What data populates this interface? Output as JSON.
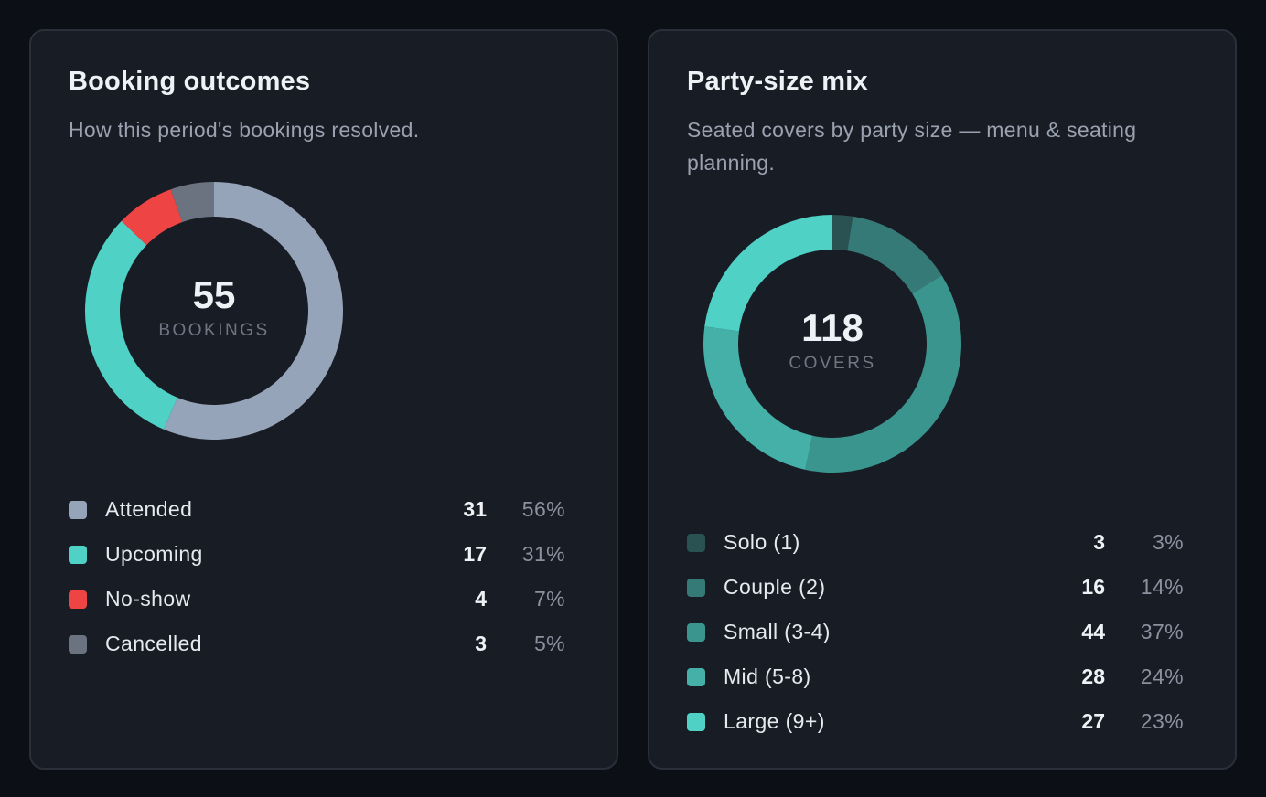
{
  "chart_data": [
    {
      "type": "pie",
      "variant": "donut",
      "title": "Booking outcomes",
      "subtitle": "How this period's bookings resolved.",
      "center_value": "55",
      "center_label": "BOOKINGS",
      "series": [
        {
          "name": "Attended",
          "value": 31,
          "percent": "56%",
          "color": "#96a4ba"
        },
        {
          "name": "Upcoming",
          "value": 17,
          "percent": "31%",
          "color": "#4fd1c5"
        },
        {
          "name": "No-show",
          "value": 4,
          "percent": "7%",
          "color": "#ef4444"
        },
        {
          "name": "Cancelled",
          "value": 3,
          "percent": "5%",
          "color": "#6b7280"
        }
      ]
    },
    {
      "type": "pie",
      "variant": "donut",
      "title": "Party-size mix",
      "subtitle": "Seated covers by party size — menu & seating planning.",
      "center_value": "118",
      "center_label": "COVERS",
      "series": [
        {
          "name": "Solo (1)",
          "value": 3,
          "percent": "3%",
          "color": "#2a5253"
        },
        {
          "name": "Couple (2)",
          "value": 16,
          "percent": "14%",
          "color": "#367a78"
        },
        {
          "name": "Small (3-4)",
          "value": 44,
          "percent": "37%",
          "color": "#3a958f"
        },
        {
          "name": "Mid (5-8)",
          "value": 28,
          "percent": "24%",
          "color": "#44b0a8"
        },
        {
          "name": "Large (9+)",
          "value": 27,
          "percent": "23%",
          "color": "#4fd1c5"
        }
      ]
    }
  ]
}
